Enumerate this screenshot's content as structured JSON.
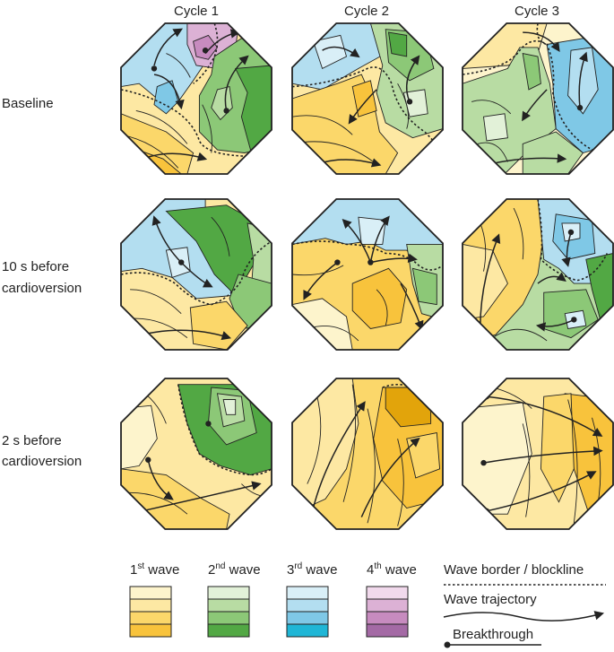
{
  "columns": [
    "Cycle 1",
    "Cycle 2",
    "Cycle 3"
  ],
  "rows": [
    {
      "lines": [
        "Baseline"
      ]
    },
    {
      "lines": [
        "10 s before",
        "cardioversion"
      ]
    },
    {
      "lines": [
        "2 s before",
        "cardioversion"
      ]
    }
  ],
  "legend": {
    "waves": [
      {
        "base": "1",
        "sup": "st",
        "rest": " wave",
        "swatches": [
          "#fdf4cc",
          "#fde8a3",
          "#fbd76a",
          "#f8c33c"
        ]
      },
      {
        "base": "2",
        "sup": "nd",
        "rest": " wave",
        "swatches": [
          "#e2f1d8",
          "#b8dca3",
          "#8cc877",
          "#52a844"
        ]
      },
      {
        "base": "3",
        "sup": "rd",
        "rest": " wave",
        "swatches": [
          "#d9eff7",
          "#b3def0",
          "#7fc8e6",
          "#1fb6d6"
        ]
      },
      {
        "base": "4",
        "sup": "th",
        "rest": " wave",
        "swatches": [
          "#f1d9ec",
          "#dcb1d5",
          "#c78bbf",
          "#a46aa5"
        ]
      }
    ],
    "keys": [
      "Wave border / blockline",
      "Wave trajectory",
      "Breakthrough"
    ]
  },
  "colors": {
    "outline": "#222222",
    "wave1": [
      "#fdf4cc",
      "#fde8a3",
      "#fbd76a",
      "#f8c33c"
    ],
    "wave2": [
      "#e2f1d8",
      "#b8dca3",
      "#8cc877",
      "#52a844"
    ],
    "wave3": [
      "#d9eff7",
      "#b3def0",
      "#7fc8e6",
      "#1fb6d6"
    ],
    "wave4": [
      "#f1d9ec",
      "#dcb1d5",
      "#c78bbf",
      "#a46aa5"
    ]
  }
}
